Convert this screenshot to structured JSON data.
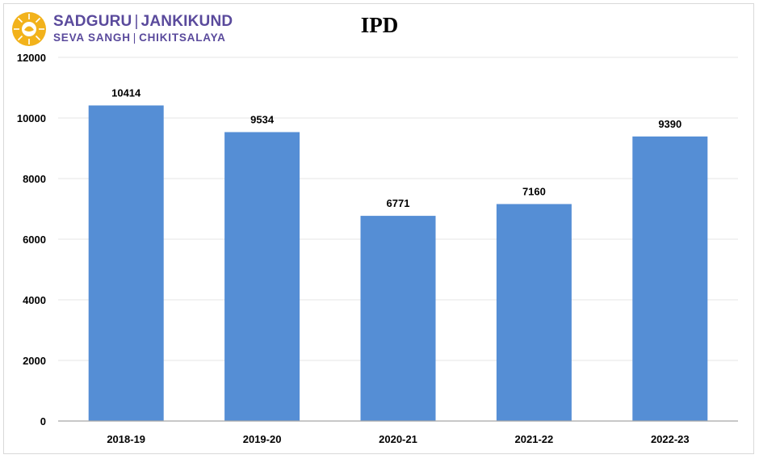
{
  "logo": {
    "line1_left": "SADGURU",
    "line1_right": "JANKIKUND",
    "line2_left": "SEVA SANGH",
    "line2_right": "CHIKITSALAYA",
    "separator": "|"
  },
  "chart_data": {
    "type": "bar",
    "title": "IPD",
    "categories": [
      "2018-19",
      "2019-20",
      "2020-21",
      "2021-22",
      "2022-23"
    ],
    "values": [
      10414,
      9534,
      6771,
      7160,
      9390
    ],
    "ylim": [
      0,
      12000
    ],
    "yticks": [
      0,
      2000,
      4000,
      6000,
      8000,
      10000,
      12000
    ],
    "bar_color": "#558ed5",
    "grid": true,
    "legend": "none",
    "data_labels": true
  }
}
